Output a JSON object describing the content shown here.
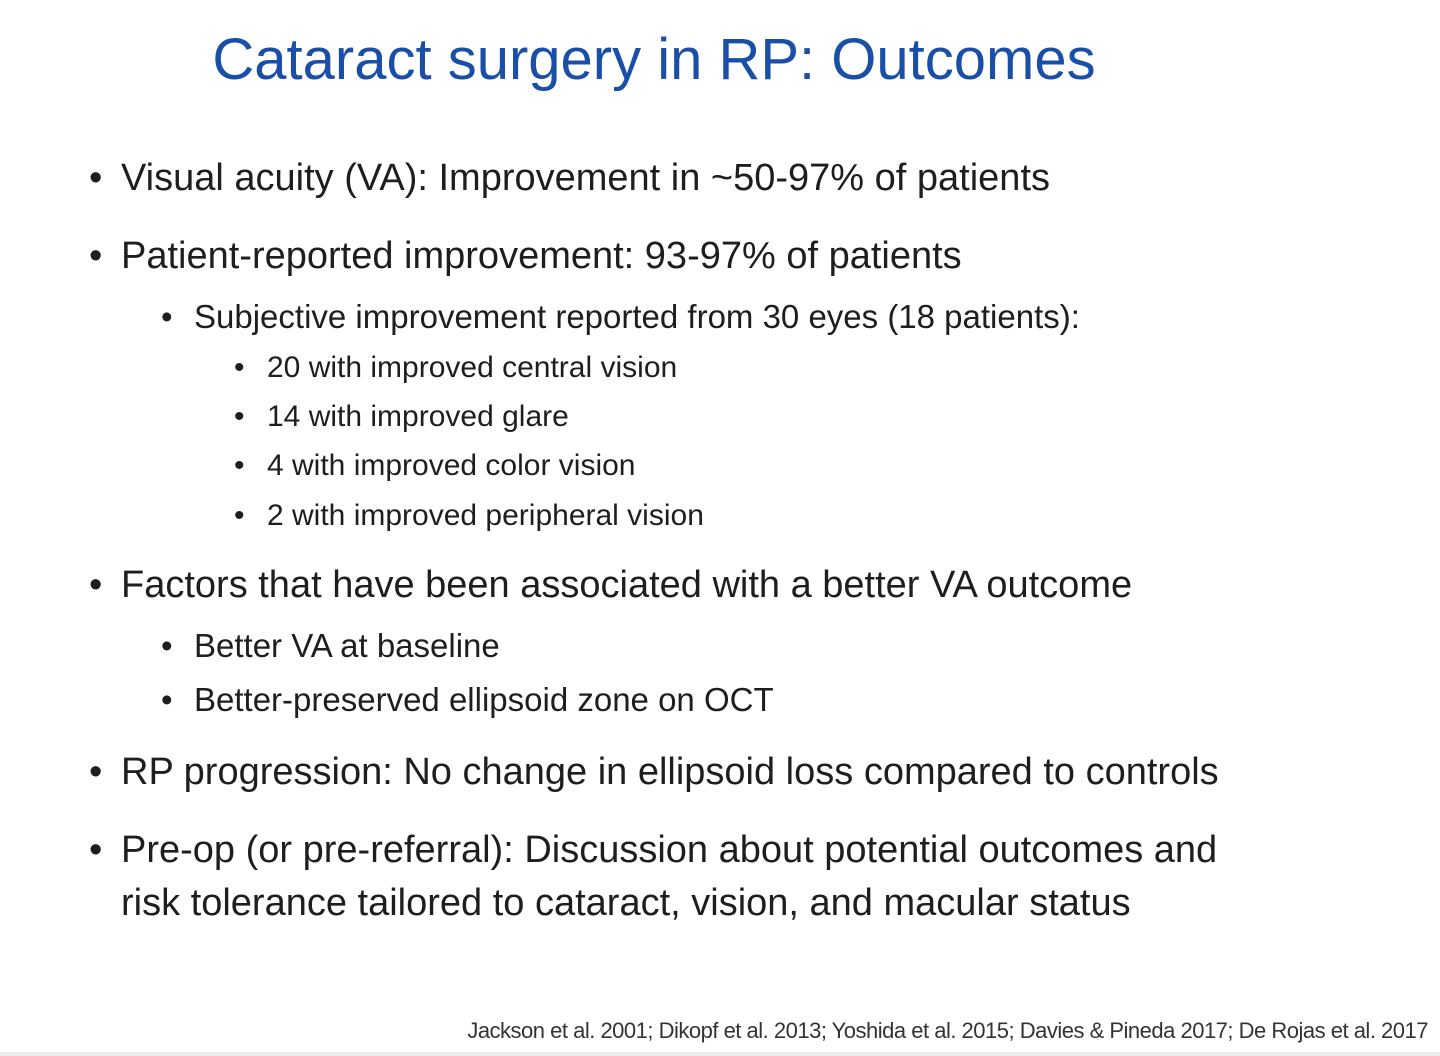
{
  "slide": {
    "title": "Cataract surgery in RP: Outcomes",
    "bullets": {
      "va": "Visual acuity (VA): Improvement in ~50-97% of patients",
      "patient_reported": "Patient-reported improvement: 93-97% of patients",
      "subjective": "Subjective improvement reported from 30 eyes (18 patients):",
      "central": "20 with improved central vision",
      "glare": "14 with improved glare",
      "color": "4 with improved color vision",
      "peripheral": "2 with improved peripheral vision",
      "factors": "Factors that have been associated with a better VA outcome",
      "baseline": "Better VA at baseline",
      "ellipsoid": "Better-preserved ellipsoid zone on OCT",
      "progression": "RP progression: No change in ellipsoid loss compared to controls",
      "preop_line1": "Pre-op (or pre-referral): Discussion about potential outcomes and",
      "preop_line2": "risk tolerance tailored to cataract, vision, and macular status"
    },
    "bullet_char": "•",
    "references": "Jackson et al. 2001; Dikopf et al. 2013; Yoshida et al. 2015; Davies & Pineda 2017; De Rojas et al. 2017"
  }
}
